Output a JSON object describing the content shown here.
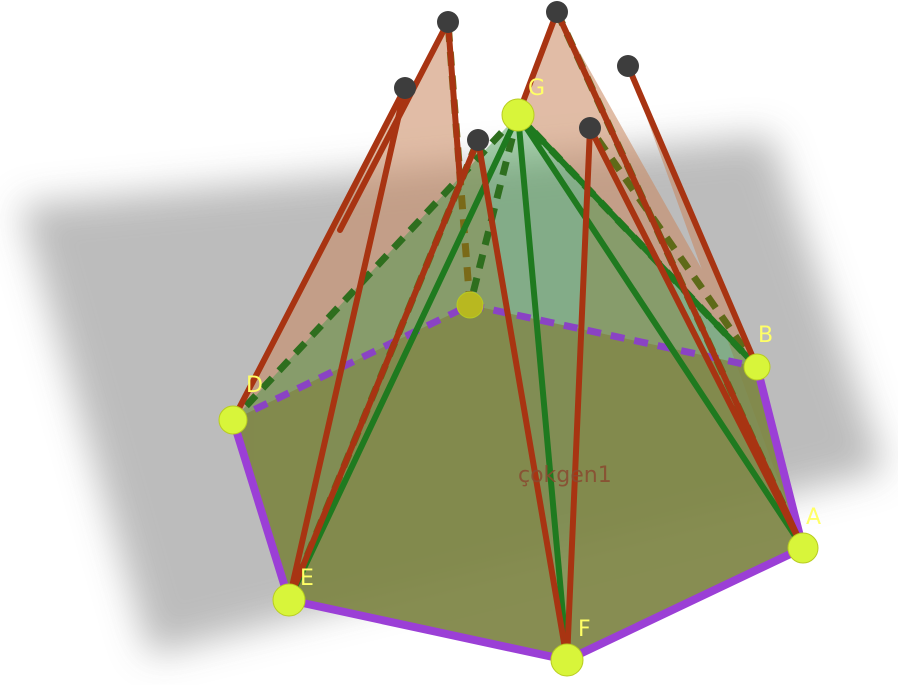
{
  "figure": {
    "type": "3d-geometry",
    "polygon_label": "çokgen1",
    "colors": {
      "base_edge": "#9b3fd6",
      "net_edge": "#a83412",
      "net_face": "#c9875e",
      "pyramid_edge": "#1f7a1f",
      "pyramid_face": "#3f9a4a",
      "base_face": "#b8723f",
      "point_fill": "#d8f53a",
      "endpoint_fill": "#3d3d3d",
      "label_color": "#ffff66",
      "plane_shadow": "#b0b0b0"
    },
    "points": [
      {
        "id": "G",
        "label": "G"
      },
      {
        "id": "B",
        "label": "B"
      },
      {
        "id": "A",
        "label": "A"
      },
      {
        "id": "F",
        "label": "F"
      },
      {
        "id": "E",
        "label": "E"
      },
      {
        "id": "D",
        "label": "D"
      },
      {
        "id": "C",
        "label": ""
      }
    ]
  }
}
